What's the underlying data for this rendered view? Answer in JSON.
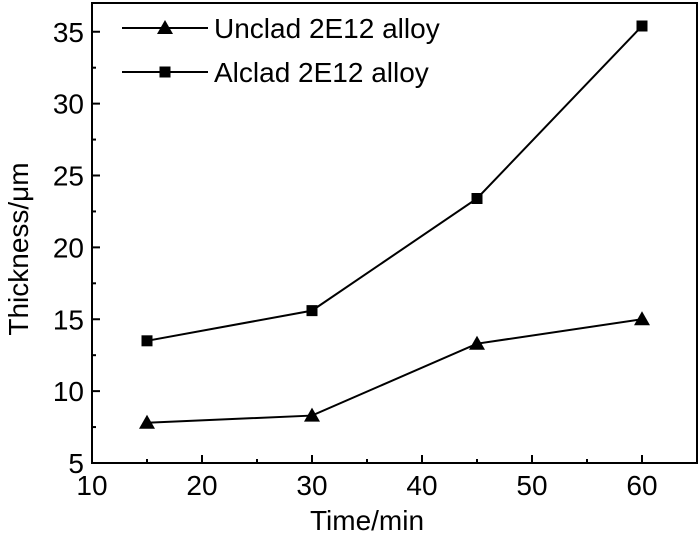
{
  "chart_data": {
    "type": "line",
    "title": "",
    "xlabel": "Time/min",
    "ylabel": "Thickness/μm",
    "xlim": [
      10,
      65
    ],
    "ylim": [
      5,
      37
    ],
    "x_ticks": [
      10,
      20,
      30,
      40,
      50,
      60
    ],
    "y_ticks": [
      5,
      10,
      15,
      20,
      25,
      30,
      35
    ],
    "x": [
      15,
      30,
      45,
      60
    ],
    "series": [
      {
        "name": "Unclad 2E12 alloy",
        "marker": "triangle",
        "values": [
          7.8,
          8.3,
          13.3,
          15.0
        ]
      },
      {
        "name": "Alclad 2E12 alloy",
        "marker": "square",
        "values": [
          13.5,
          15.6,
          23.4,
          35.4
        ]
      }
    ],
    "legend_position": "top-left",
    "grid": false,
    "colors": {
      "line": "#000000",
      "background": "#ffffff"
    }
  }
}
